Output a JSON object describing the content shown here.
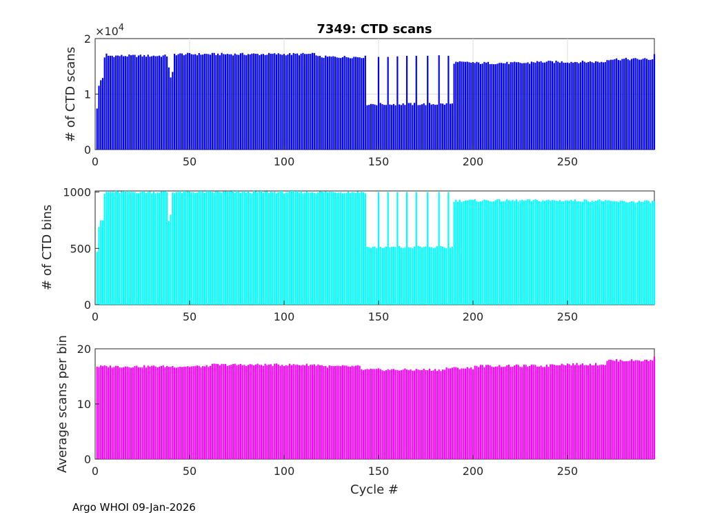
{
  "figure": {
    "footer": "Argo WHOI 09-Jan-2026"
  },
  "chart_data": [
    {
      "type": "bar",
      "title": "7349: CTD scans",
      "xlabel": "",
      "ylabel": "# of CTD scans",
      "exponent_label": "×10",
      "exponent_power": "4",
      "xlim": [
        0,
        296
      ],
      "ylim": [
        0,
        20000
      ],
      "xticks": [
        0,
        50,
        100,
        150,
        200,
        250
      ],
      "yticks": [
        0,
        10000,
        20000
      ],
      "ytick_labels": [
        "0",
        "1",
        "2"
      ],
      "grid": true,
      "color": "#0000ff",
      "x": "cycles 1-296",
      "segments": [
        {
          "from": 1,
          "to": 1,
          "value": 7400
        },
        {
          "from": 2,
          "to": 2,
          "value": 11500
        },
        {
          "from": 3,
          "to": 3,
          "value": 12500
        },
        {
          "from": 4,
          "to": 4,
          "value": 12900
        },
        {
          "from": 5,
          "to": 5,
          "value": 16600
        },
        {
          "from": 6,
          "to": 6,
          "value": 17300
        },
        {
          "from": 7,
          "to": 38,
          "value": 16900
        },
        {
          "from": 39,
          "to": 39,
          "value": 14800
        },
        {
          "from": 40,
          "to": 40,
          "value": 13000
        },
        {
          "from": 41,
          "to": 41,
          "value": 14000
        },
        {
          "from": 42,
          "to": 117,
          "value": 17200
        },
        {
          "from": 118,
          "to": 143,
          "value": 16700
        },
        {
          "from": 144,
          "to": 189,
          "value": 8200
        },
        {
          "from": 190,
          "to": 200,
          "value": 15700
        },
        {
          "from": 201,
          "to": 230,
          "value": 15600
        },
        {
          "from": 231,
          "to": 270,
          "value": 15800
        },
        {
          "from": 271,
          "to": 296,
          "value": 16300
        }
      ],
      "spikes": [
        {
          "cycle": 150,
          "value": 16700
        },
        {
          "cycle": 155,
          "value": 16700
        },
        {
          "cycle": 160,
          "value": 16800
        },
        {
          "cycle": 165,
          "value": 16900
        },
        {
          "cycle": 170,
          "value": 16900
        },
        {
          "cycle": 176,
          "value": 16900
        },
        {
          "cycle": 182,
          "value": 17000
        },
        {
          "cycle": 187,
          "value": 16900
        },
        {
          "cycle": 296,
          "value": 17200
        }
      ]
    },
    {
      "type": "bar",
      "title": "",
      "xlabel": "",
      "ylabel": "# of CTD bins",
      "xlim": [
        0,
        296
      ],
      "ylim": [
        0,
        1010
      ],
      "xticks": [
        0,
        50,
        100,
        150,
        200,
        250
      ],
      "yticks": [
        0,
        500,
        1000
      ],
      "ytick_labels": [
        "0",
        "500",
        "1000"
      ],
      "grid": false,
      "color": "#00ffff",
      "x": "cycles 1-296",
      "segments": [
        {
          "from": 1,
          "to": 1,
          "value": 470
        },
        {
          "from": 2,
          "to": 2,
          "value": 690
        },
        {
          "from": 3,
          "to": 3,
          "value": 750
        },
        {
          "from": 4,
          "to": 4,
          "value": 750
        },
        {
          "from": 5,
          "to": 5,
          "value": 985
        },
        {
          "from": 6,
          "to": 38,
          "value": 1000
        },
        {
          "from": 39,
          "to": 39,
          "value": 740
        },
        {
          "from": 40,
          "to": 40,
          "value": 800
        },
        {
          "from": 41,
          "to": 143,
          "value": 1000
        },
        {
          "from": 144,
          "to": 189,
          "value": 510
        },
        {
          "from": 190,
          "to": 270,
          "value": 925
        },
        {
          "from": 271,
          "to": 296,
          "value": 915
        }
      ],
      "spikes": [
        {
          "cycle": 150,
          "value": 1000
        },
        {
          "cycle": 155,
          "value": 1000
        },
        {
          "cycle": 160,
          "value": 1000
        },
        {
          "cycle": 165,
          "value": 1000
        },
        {
          "cycle": 170,
          "value": 1000
        },
        {
          "cycle": 176,
          "value": 1000
        },
        {
          "cycle": 182,
          "value": 1000
        },
        {
          "cycle": 187,
          "value": 1000
        }
      ]
    },
    {
      "type": "bar",
      "title": "",
      "xlabel": "Cycle #",
      "ylabel": "Average scans per bin",
      "xlim": [
        0,
        296
      ],
      "ylim": [
        0,
        20
      ],
      "xticks": [
        0,
        50,
        100,
        150,
        200,
        250
      ],
      "yticks": [
        0,
        10,
        20
      ],
      "ytick_labels": [
        "0",
        "10",
        "20"
      ],
      "grid": false,
      "color": "#ff00ff",
      "x": "cycles 1-296",
      "segments": [
        {
          "from": 1,
          "to": 60,
          "value": 16.8
        },
        {
          "from": 61,
          "to": 120,
          "value": 17.1
        },
        {
          "from": 121,
          "to": 140,
          "value": 16.8
        },
        {
          "from": 141,
          "to": 185,
          "value": 16.2
        },
        {
          "from": 186,
          "to": 200,
          "value": 16.5
        },
        {
          "from": 201,
          "to": 240,
          "value": 16.9
        },
        {
          "from": 241,
          "to": 270,
          "value": 17.2
        },
        {
          "from": 271,
          "to": 296,
          "value": 17.9
        }
      ],
      "spikes": [
        {
          "cycle": 296,
          "value": 18.6
        }
      ]
    }
  ]
}
